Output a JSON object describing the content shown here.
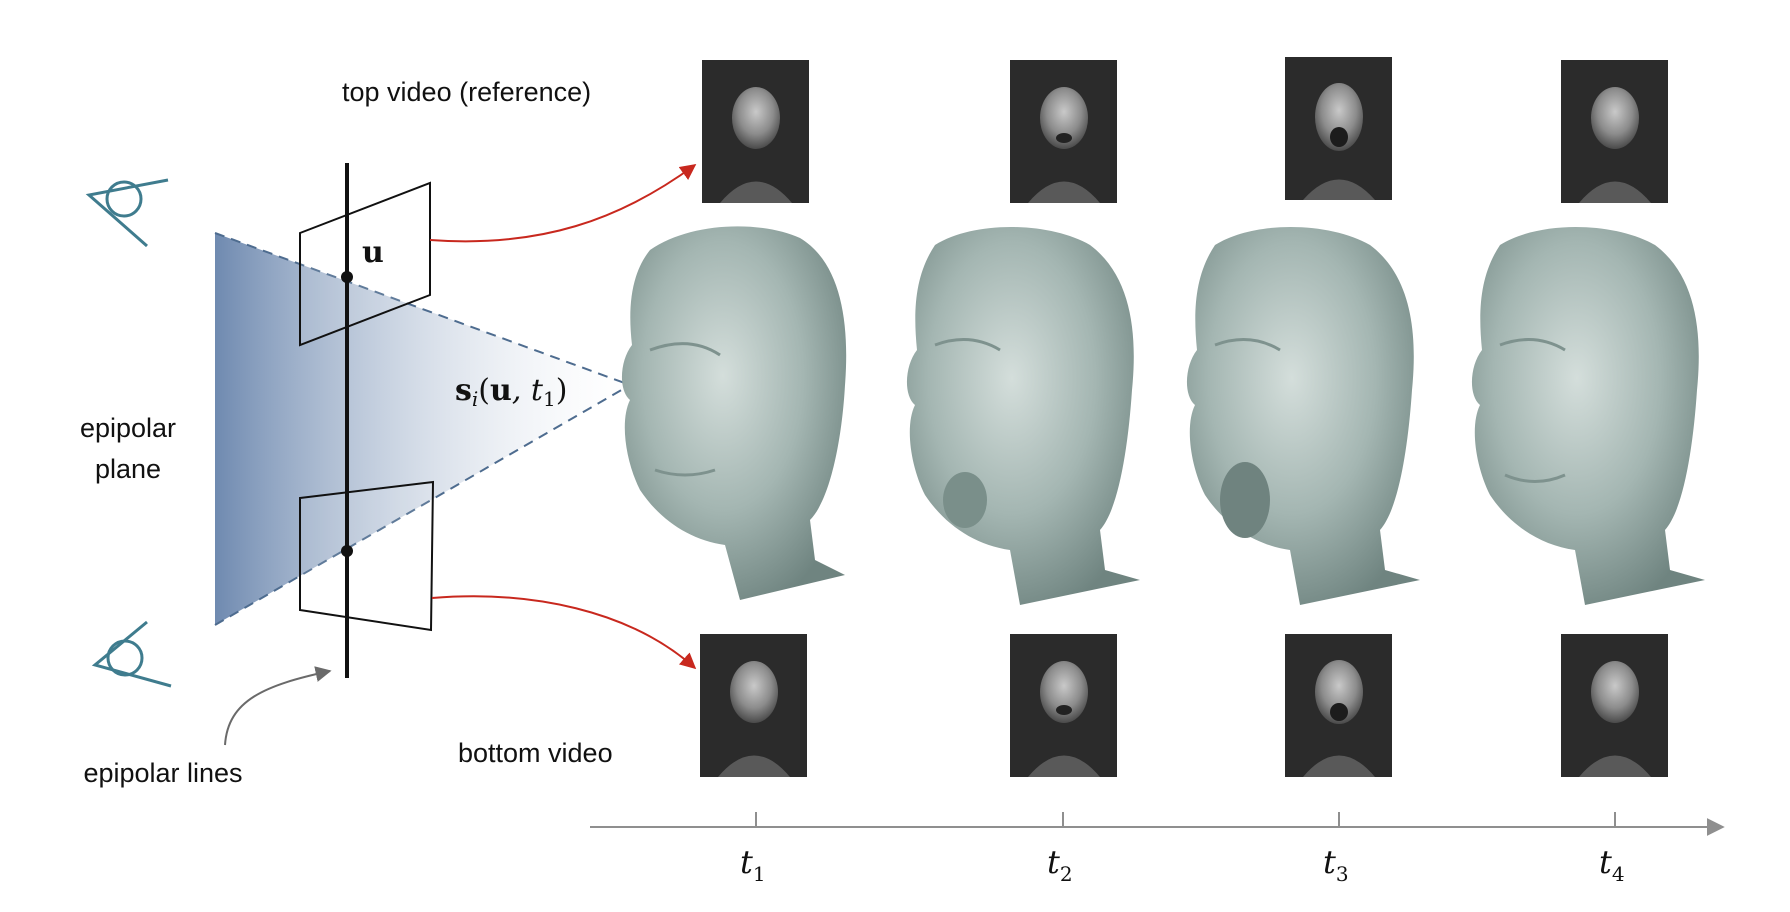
{
  "labels": {
    "top_video": "top video (reference)",
    "bottom_video": "bottom video",
    "epipolar_plane_line1": "epipolar",
    "epipolar_plane_line2": "plane",
    "epipolar_lines": "epipolar lines",
    "point_u": "u",
    "surface_point": {
      "s": "s",
      "i": "i",
      "args_open": "(",
      "u": "u",
      "comma_t": ", t",
      "one": "1",
      "args_close": ")"
    }
  },
  "timeline": {
    "ticks": [
      {
        "t": "t",
        "sub": "1"
      },
      {
        "t": "t",
        "sub": "2"
      },
      {
        "t": "t",
        "sub": "3"
      },
      {
        "t": "t",
        "sub": "4"
      }
    ]
  },
  "colors": {
    "camera_icon": "#3f7c8e",
    "arrow": "#c8281e",
    "plane_gradient_start": "#6f8ab0",
    "plane_gradient_end": "#ffffff",
    "face_mesh": "#9fb1ad",
    "video_frame_bg": "#2b2b2b",
    "timeline_axis": "#8f8f8f"
  }
}
